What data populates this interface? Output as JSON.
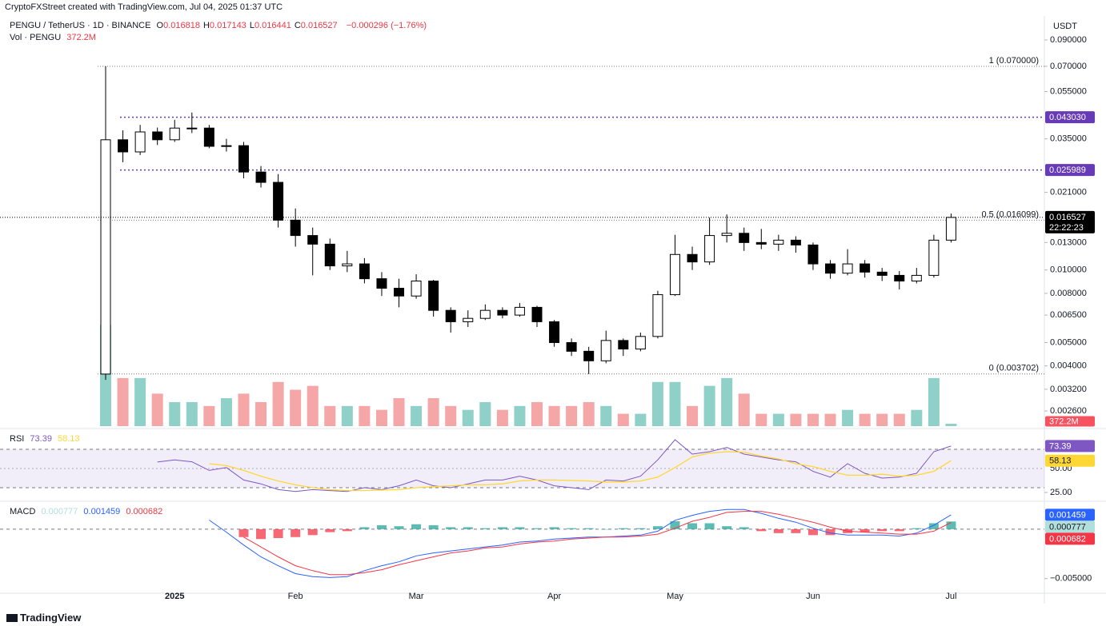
{
  "header": {
    "credit": "CryptoFXStreet created with TradingView.com, Jul 04, 2025 01:37 UTC",
    "symbol": "PENGU / TetherUS · 1D · BINANCE",
    "ohlc": [
      {
        "key": "O",
        "value": "0.016818"
      },
      {
        "key": "H",
        "value": "0.017143"
      },
      {
        "key": "L",
        "value": "0.016441"
      },
      {
        "key": "C",
        "value": "0.016527"
      }
    ],
    "change": "−0.000296 (−1.76%)",
    "brand": "TradingView"
  },
  "chart_data": [
    {
      "type": "candlestick",
      "currency": "USDT",
      "log_scale": true,
      "up_color": "#ffffff",
      "down_color": "#000000",
      "categories": [
        null,
        null,
        null,
        null,
        "2025",
        null,
        null,
        null,
        null,
        null,
        null,
        "Feb",
        null,
        null,
        null,
        null,
        null,
        null,
        "Mar",
        null,
        null,
        null,
        null,
        null,
        null,
        null,
        "Apr",
        null,
        null,
        null,
        null,
        null,
        null,
        "May",
        null,
        null,
        null,
        null,
        null,
        null,
        null,
        "Jun",
        null,
        null,
        null,
        null,
        null,
        null,
        null,
        "Jul"
      ],
      "open": [
        0.0037,
        0.0347,
        0.0309,
        0.0374,
        0.0347,
        0.0388,
        0.0388,
        0.0326,
        0.0328,
        0.0255,
        0.0231,
        0.0161,
        0.0139,
        0.0128,
        0.0104,
        0.0106,
        0.0092,
        0.0084,
        0.0078,
        0.009,
        0.0068,
        0.0061,
        0.0063,
        0.0068,
        0.0065,
        0.007,
        0.0061,
        0.005,
        0.0046,
        0.0042,
        0.0051,
        0.0047,
        0.0053,
        0.0079,
        0.0116,
        0.0108,
        0.0139,
        0.0142,
        0.013,
        0.0128,
        0.0133,
        0.0127,
        0.0106,
        0.0097,
        0.0106,
        0.0098,
        0.0095,
        0.009,
        0.0095,
        0.0133
      ],
      "high": [
        0.07,
        0.038,
        0.04,
        0.039,
        0.042,
        0.045,
        0.04,
        0.035,
        0.034,
        0.027,
        0.025,
        0.018,
        0.015,
        0.0135,
        0.012,
        0.0112,
        0.0098,
        0.0092,
        0.0096,
        0.0091,
        0.007,
        0.0068,
        0.0072,
        0.007,
        0.0073,
        0.0071,
        0.0062,
        0.0052,
        0.0048,
        0.0056,
        0.0052,
        0.0055,
        0.0082,
        0.014,
        0.0125,
        0.0165,
        0.017,
        0.015,
        0.0148,
        0.014,
        0.0138,
        0.013,
        0.011,
        0.0122,
        0.011,
        0.0102,
        0.0099,
        0.0102,
        0.014,
        0.017143
      ],
      "low": [
        0.0035,
        0.028,
        0.03,
        0.033,
        0.034,
        0.037,
        0.032,
        0.031,
        0.024,
        0.022,
        0.015,
        0.0125,
        0.0095,
        0.01,
        0.0098,
        0.0088,
        0.0078,
        0.007,
        0.0076,
        0.0064,
        0.0055,
        0.0058,
        0.0062,
        0.0063,
        0.0064,
        0.0058,
        0.0048,
        0.0044,
        0.0037,
        0.0041,
        0.0044,
        0.0046,
        0.0052,
        0.0078,
        0.01,
        0.0105,
        0.013,
        0.012,
        0.0122,
        0.012,
        0.0118,
        0.01,
        0.0092,
        0.0095,
        0.0093,
        0.009,
        0.0083,
        0.0088,
        0.0093,
        0.013
      ],
      "close": [
        0.0347,
        0.0309,
        0.0374,
        0.0347,
        0.0388,
        0.0388,
        0.0326,
        0.0328,
        0.0255,
        0.0231,
        0.0161,
        0.0139,
        0.0128,
        0.0104,
        0.0106,
        0.0092,
        0.0084,
        0.0078,
        0.009,
        0.0068,
        0.0061,
        0.0063,
        0.0068,
        0.0065,
        0.007,
        0.0061,
        0.005,
        0.0046,
        0.0042,
        0.0051,
        0.0047,
        0.0053,
        0.0079,
        0.0116,
        0.0108,
        0.0139,
        0.0142,
        0.013,
        0.0128,
        0.0133,
        0.0127,
        0.0106,
        0.0097,
        0.0106,
        0.0098,
        0.0095,
        0.009,
        0.0095,
        0.0133,
        0.016527
      ],
      "countdown": "22:22:23",
      "ylim": [
        0.00225,
        0.1065
      ],
      "yticks": [
        {
          "value": 0.0026,
          "label": "0.002600"
        },
        {
          "value": 0.0032,
          "label": "0.003200"
        },
        {
          "value": 0.004,
          "label": "0.004000"
        },
        {
          "value": 0.005,
          "label": "0.005000"
        },
        {
          "value": 0.0065,
          "label": "0.006500"
        },
        {
          "value": 0.008,
          "label": "0.008000"
        },
        {
          "value": 0.01,
          "label": "0.010000"
        },
        {
          "value": 0.013,
          "label": "0.013000"
        },
        {
          "value": 0.021,
          "label": "0.021000"
        },
        {
          "value": 0.035,
          "label": "0.035000"
        },
        {
          "value": 0.055,
          "label": "0.055000"
        },
        {
          "value": 0.07,
          "label": "0.070000"
        },
        {
          "value": 0.09,
          "label": "0.090000"
        }
      ],
      "fib_levels": [
        {
          "value": 0.07,
          "label": "1 (0.070000)"
        },
        {
          "value": 0.016099,
          "label": "0.5 (0.016099)"
        },
        {
          "value": 0.003702,
          "label": "0 (0.003702)"
        }
      ],
      "hlines": [
        {
          "value": 0.04303,
          "label": "0.043030",
          "color": "#673ab7"
        },
        {
          "value": 0.025989,
          "label": "0.025989",
          "color": "#673ab7"
        }
      ],
      "volume": {
        "name": "Vol · PENGU",
        "up_color": "#8fd1c8",
        "down_color": "#f5a6a6",
        "vlim": [
          0,
          16000
        ],
        "values": [
          15600,
          7400,
          7400,
          5000,
          3700,
          3700,
          3100,
          4300,
          5000,
          3700,
          6800,
          5600,
          6200,
          3100,
          3100,
          3100,
          2500,
          4300,
          3100,
          4300,
          3100,
          2500,
          3700,
          2500,
          3100,
          3700,
          3100,
          3100,
          3700,
          3100,
          1900,
          1900,
          6800,
          6800,
          3100,
          6200,
          7400,
          5000,
          1900,
          1900,
          1900,
          1900,
          1900,
          2500,
          1900,
          1900,
          1900,
          2500,
          7400,
          372.2
        ],
        "value_labels": [
          null,
          null,
          null,
          null,
          null,
          null,
          null,
          null,
          null,
          null,
          null,
          null,
          null,
          null,
          null,
          null,
          null,
          null,
          null,
          null,
          null,
          null,
          null,
          null,
          null,
          null,
          null,
          null,
          null,
          null,
          null,
          null,
          null,
          null,
          null,
          null,
          null,
          null,
          null,
          null,
          null,
          null,
          null,
          null,
          null,
          null,
          null,
          null,
          null,
          "372.2M"
        ]
      }
    },
    {
      "type": "rsi",
      "title": "RSI",
      "band": [
        30,
        70
      ],
      "band_color": "#7e57c2",
      "ylim": [
        17.5,
        88.3
      ],
      "yticks": [
        {
          "value": 50,
          "label": "50.00"
        },
        {
          "value": 25,
          "label": "25.00"
        }
      ],
      "series": [
        {
          "color": "#7e57c2",
          "values": [
            null,
            null,
            null,
            56.7,
            59,
            57,
            48,
            51,
            38,
            34,
            28,
            26,
            28,
            27,
            26,
            30,
            28,
            32,
            38,
            32,
            30,
            34,
            38,
            38,
            42,
            38,
            32,
            30,
            28,
            38,
            37,
            42,
            59,
            80,
            65,
            67.5,
            72,
            65,
            62,
            59,
            57,
            47,
            41,
            55,
            45,
            40,
            41,
            45,
            67.5,
            73.39
          ]
        },
        {
          "color": "#fdd835",
          "values": [
            null,
            null,
            null,
            null,
            null,
            null,
            55,
            53,
            48,
            42,
            37,
            33,
            30,
            28,
            27,
            27,
            27.5,
            28,
            30,
            31,
            32,
            33,
            33,
            34,
            37,
            38,
            38,
            37.5,
            37,
            36,
            36,
            37,
            41,
            51,
            62,
            66,
            67.5,
            67,
            63,
            60,
            55,
            52,
            47,
            43,
            43,
            44,
            42,
            43,
            47,
            58.13
          ]
        }
      ]
    },
    {
      "type": "macd",
      "title": "MACD",
      "zero_line": true,
      "ylim": [
        -0.00632,
        0.00258
      ],
      "yticks": [
        {
          "value": -0.005,
          "label": "−0.005000"
        }
      ],
      "histogram": {
        "color": "#26a69a",
        "negative_color": "#f23645",
        "label_color": "#b2dfdb",
        "values": [
          null,
          null,
          null,
          null,
          null,
          null,
          null,
          null,
          -0.0008,
          -0.001,
          -0.0009,
          -0.0008,
          -0.0006,
          -0.0003,
          -0.0002,
          0.0002,
          0.0004,
          0.0003,
          0.0005,
          0.0004,
          0.0002,
          0.0002,
          0.0001,
          0.0002,
          0.0002,
          0.0001,
          0.0002,
          0.0001,
          0.0001,
          0,
          0.0001,
          0.0001,
          0.0003,
          0.0008,
          0.0006,
          0.0006,
          0.0003,
          0.0002,
          -0.0002,
          -0.0004,
          -0.0004,
          -0.0006,
          -0.0006,
          -0.0004,
          -0.0003,
          -0.0002,
          -0.0002,
          0.0001,
          0.0006,
          0.000777
        ]
      },
      "series": [
        {
          "color": "#2962ff",
          "values": [
            null,
            null,
            null,
            null,
            null,
            null,
            0.00092,
            -0.0003,
            -0.0016,
            -0.0028,
            -0.0037,
            -0.0045,
            -0.0048,
            -0.0049,
            -0.0048,
            -0.0042,
            -0.0037,
            -0.0033,
            -0.0027,
            -0.0024,
            -0.0022,
            -0.002,
            -0.0018,
            -0.0016,
            -0.0013,
            -0.0012,
            -0.001,
            -0.0009,
            -0.0008,
            -0.0008,
            -0.0007,
            -0.0006,
            -0.0002,
            0.0009,
            0.0014,
            0.0018,
            0.002,
            0.002,
            0.0016,
            0.0011,
            0.0007,
            0.0001,
            -0.0004,
            -0.0006,
            -0.0006,
            -0.0006,
            -0.0007,
            -0.0004,
            0.0004,
            0.001459
          ]
        },
        {
          "color": "#f23645",
          "values": [
            null,
            null,
            null,
            null,
            null,
            null,
            null,
            null,
            -0.0008,
            -0.0018,
            -0.0028,
            -0.0037,
            -0.0042,
            -0.0046,
            -0.0046,
            -0.0044,
            -0.0041,
            -0.0036,
            -0.0032,
            -0.0028,
            -0.0024,
            -0.0022,
            -0.0019,
            -0.0018,
            -0.0015,
            -0.0013,
            -0.0012,
            -0.001,
            -0.0009,
            -0.0008,
            -0.0008,
            -0.0007,
            -0.0005,
            0.0001,
            0.0008,
            0.0012,
            0.0017,
            0.0018,
            0.0018,
            0.0015,
            0.0011,
            0.0007,
            0.0002,
            -0.0002,
            -0.0003,
            -0.0004,
            -0.0005,
            -0.0005,
            -0.0002,
            0.000682
          ]
        }
      ]
    }
  ]
}
